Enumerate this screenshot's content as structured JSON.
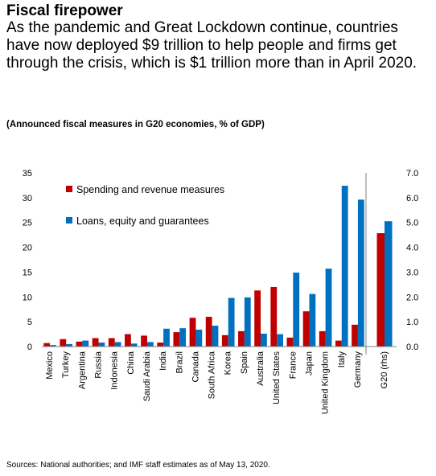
{
  "header": {
    "title": "Fiscal firepower",
    "subtitle": "As the pandemic and Great Lockdown continue, countries have now deployed $9 trillion to help people and firms get through the crisis, which is $1 trillion more than in April 2020."
  },
  "chart_title": "(Announced fiscal measures in G20 economies, % of GDP)",
  "source": "Sources: National authorities; and IMF staff estimates as of May 13, 2020.",
  "colors": {
    "spending": "#C00000",
    "loans": "#0070C0",
    "axis": "#808080"
  },
  "chart_data": {
    "type": "bar",
    "categories": [
      "Mexico",
      "Turkey",
      "Argentina",
      "Russia",
      "Indonesia",
      "China",
      "Saudi Arabia",
      "India",
      "Brazil",
      "Canada",
      "South Africa",
      "Korea",
      "Spain",
      "Australia",
      "United States",
      "France",
      "Japan",
      "United Kingdom",
      "Italy",
      "Germany"
    ],
    "series": [
      {
        "name": "Spending and revenue measures",
        "values": [
          0.7,
          1.5,
          1.0,
          1.7,
          1.7,
          2.5,
          2.2,
          0.8,
          2.9,
          5.8,
          6.0,
          2.3,
          3.1,
          11.3,
          12.0,
          1.8,
          7.1,
          3.1,
          1.2,
          4.4
        ]
      },
      {
        "name": "Loans, equity and guarantees",
        "values": [
          0.3,
          0.5,
          1.2,
          0.8,
          0.9,
          0.6,
          0.9,
          3.6,
          3.7,
          3.4,
          4.2,
          9.8,
          9.9,
          2.6,
          2.5,
          14.9,
          10.6,
          15.7,
          32.4,
          29.6
        ]
      }
    ],
    "g20": {
      "category": "G20 (rhs)",
      "values": [
        4.57,
        5.05
      ]
    },
    "ylim": [
      0,
      35
    ],
    "yticks": [
      "0",
      "5",
      "10",
      "15",
      "20",
      "25",
      "30",
      "35"
    ],
    "y2lim": [
      0,
      7
    ],
    "y2ticks": [
      "0.0",
      "1.0",
      "2.0",
      "3.0",
      "4.0",
      "5.0",
      "6.0",
      "7.0"
    ],
    "legend": [
      "Spending and revenue measures",
      "Loans, equity and guarantees"
    ],
    "legend_position": "top-left"
  }
}
